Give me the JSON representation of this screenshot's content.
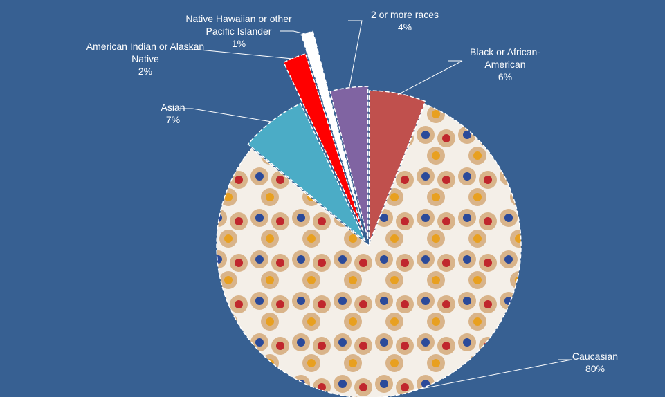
{
  "chart_data": {
    "type": "pie",
    "categories": [
      "Black or African-American",
      "Caucasian",
      "Asian",
      "American Indian or Alaskan Native",
      "Native Hawaiian or other Pacific Islander",
      "2 or more races"
    ],
    "values": [
      6,
      80,
      7,
      2,
      1,
      4
    ],
    "value_labels": [
      "6%",
      "80%",
      "7%",
      "2%",
      "1%",
      "4%"
    ],
    "colors": [
      "#c0504d",
      "#ffffff",
      "#4bacc6",
      "#ff0000",
      "#ffffff",
      "#8064a2"
    ]
  }
}
